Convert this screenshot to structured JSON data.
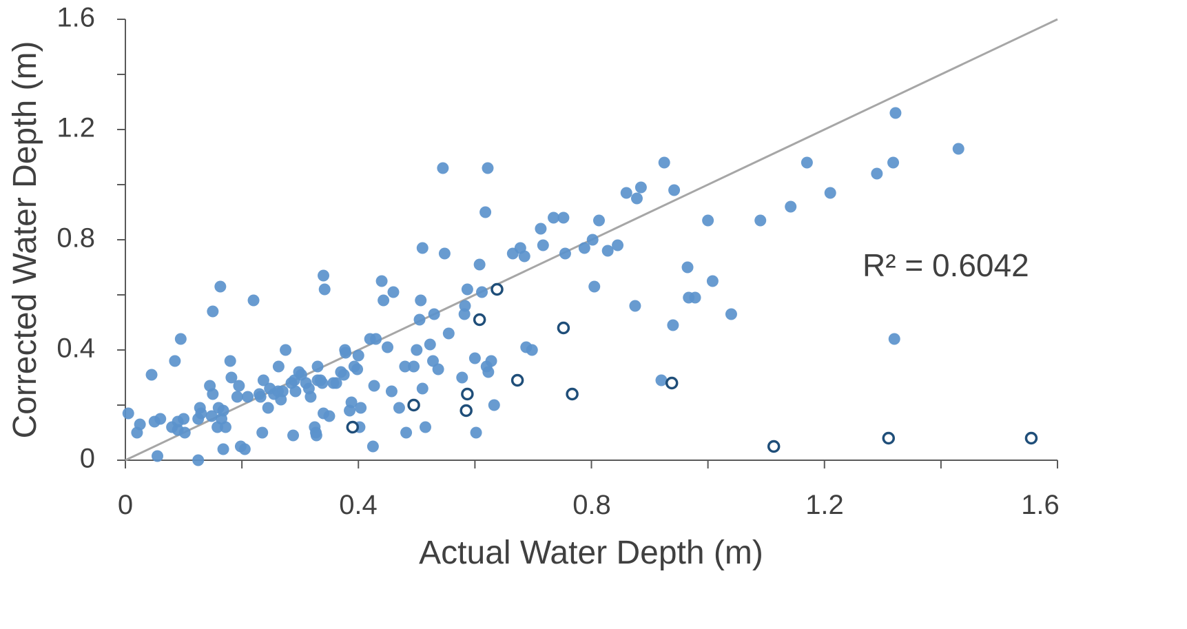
{
  "chart_data": {
    "type": "scatter",
    "xlabel": "Actual Water Depth (m)",
    "ylabel": "Corrected Water Depth (m)",
    "xlim": [
      0,
      1.6
    ],
    "ylim": [
      0,
      1.6
    ],
    "x_ticks": [
      "0",
      "0.4",
      "0.8",
      "1.2",
      "1.6"
    ],
    "y_ticks": [
      "0",
      "0.4",
      "0.8",
      "1.2",
      "1.6"
    ],
    "grid": false,
    "annotation": "R² = 0.6042",
    "reference_line": {
      "from": [
        0,
        0
      ],
      "to": [
        1.6,
        1.6
      ],
      "color": "#a6a6a6"
    },
    "colors": {
      "filled": "#5b93cc",
      "hollow_stroke": "#1f4e79",
      "axis": "#595959",
      "text": "#404040"
    },
    "series": [
      {
        "marker": "filled",
        "points": [
          [
            0.005,
            0.17
          ],
          [
            0.02,
            0.1
          ],
          [
            0.025,
            0.13
          ],
          [
            0.045,
            0.31
          ],
          [
            0.05,
            0.14
          ],
          [
            0.055,
            0.015
          ],
          [
            0.06,
            0.15
          ],
          [
            0.08,
            0.12
          ],
          [
            0.085,
            0.36
          ],
          [
            0.09,
            0.11
          ],
          [
            0.09,
            0.14
          ],
          [
            0.095,
            0.44
          ],
          [
            0.1,
            0.15
          ],
          [
            0.102,
            0.1
          ],
          [
            0.125,
            0.0
          ],
          [
            0.125,
            0.15
          ],
          [
            0.128,
            0.19
          ],
          [
            0.13,
            0.17
          ],
          [
            0.145,
            0.27
          ],
          [
            0.148,
            0.16
          ],
          [
            0.15,
            0.54
          ],
          [
            0.15,
            0.24
          ],
          [
            0.158,
            0.12
          ],
          [
            0.16,
            0.19
          ],
          [
            0.163,
            0.63
          ],
          [
            0.165,
            0.15
          ],
          [
            0.168,
            0.04
          ],
          [
            0.168,
            0.18
          ],
          [
            0.172,
            0.12
          ],
          [
            0.18,
            0.36
          ],
          [
            0.182,
            0.3
          ],
          [
            0.192,
            0.23
          ],
          [
            0.195,
            0.27
          ],
          [
            0.198,
            0.05
          ],
          [
            0.205,
            0.04
          ],
          [
            0.21,
            0.23
          ],
          [
            0.22,
            0.58
          ],
          [
            0.23,
            0.24
          ],
          [
            0.232,
            0.23
          ],
          [
            0.235,
            0.1
          ],
          [
            0.237,
            0.29
          ],
          [
            0.245,
            0.19
          ],
          [
            0.248,
            0.26
          ],
          [
            0.255,
            0.24
          ],
          [
            0.262,
            0.25
          ],
          [
            0.263,
            0.34
          ],
          [
            0.267,
            0.22
          ],
          [
            0.27,
            0.25
          ],
          [
            0.275,
            0.4
          ],
          [
            0.285,
            0.28
          ],
          [
            0.288,
            0.09
          ],
          [
            0.29,
            0.29
          ],
          [
            0.292,
            0.25
          ],
          [
            0.298,
            0.32
          ],
          [
            0.302,
            0.31
          ],
          [
            0.31,
            0.28
          ],
          [
            0.315,
            0.26
          ],
          [
            0.318,
            0.23
          ],
          [
            0.325,
            0.12
          ],
          [
            0.327,
            0.1
          ],
          [
            0.328,
            0.09
          ],
          [
            0.33,
            0.34
          ],
          [
            0.33,
            0.29
          ],
          [
            0.335,
            0.29
          ],
          [
            0.338,
            0.28
          ],
          [
            0.34,
            0.17
          ],
          [
            0.34,
            0.67
          ],
          [
            0.342,
            0.62
          ],
          [
            0.35,
            0.16
          ],
          [
            0.357,
            0.28
          ],
          [
            0.362,
            0.28
          ],
          [
            0.37,
            0.32
          ],
          [
            0.375,
            0.31
          ],
          [
            0.377,
            0.4
          ],
          [
            0.378,
            0.39
          ],
          [
            0.385,
            0.18
          ],
          [
            0.388,
            0.21
          ],
          [
            0.393,
            0.34
          ],
          [
            0.398,
            0.33
          ],
          [
            0.4,
            0.38
          ],
          [
            0.402,
            0.12
          ],
          [
            0.404,
            0.19
          ],
          [
            0.42,
            0.44
          ],
          [
            0.425,
            0.05
          ],
          [
            0.427,
            0.27
          ],
          [
            0.43,
            0.44
          ],
          [
            0.44,
            0.65
          ],
          [
            0.443,
            0.58
          ],
          [
            0.45,
            0.41
          ],
          [
            0.457,
            0.25
          ],
          [
            0.46,
            0.61
          ],
          [
            0.47,
            0.19
          ],
          [
            0.48,
            0.34
          ],
          [
            0.482,
            0.1
          ],
          [
            0.495,
            0.34
          ],
          [
            0.5,
            0.4
          ],
          [
            0.505,
            0.51
          ],
          [
            0.507,
            0.58
          ],
          [
            0.51,
            0.77
          ],
          [
            0.51,
            0.26
          ],
          [
            0.515,
            0.12
          ],
          [
            0.523,
            0.42
          ],
          [
            0.528,
            0.36
          ],
          [
            0.53,
            0.53
          ],
          [
            0.537,
            0.33
          ],
          [
            0.545,
            1.06
          ],
          [
            0.548,
            0.75
          ],
          [
            0.555,
            0.46
          ],
          [
            0.578,
            0.3
          ],
          [
            0.582,
            0.53
          ],
          [
            0.583,
            0.56
          ],
          [
            0.587,
            0.62
          ],
          [
            0.6,
            0.37
          ],
          [
            0.602,
            0.1
          ],
          [
            0.608,
            0.71
          ],
          [
            0.612,
            0.61
          ],
          [
            0.618,
            0.9
          ],
          [
            0.62,
            0.34
          ],
          [
            0.622,
            1.06
          ],
          [
            0.623,
            0.32
          ],
          [
            0.628,
            0.36
          ],
          [
            0.633,
            0.2
          ],
          [
            0.665,
            0.75
          ],
          [
            0.678,
            0.77
          ],
          [
            0.685,
            0.74
          ],
          [
            0.688,
            0.41
          ],
          [
            0.698,
            0.4
          ],
          [
            0.713,
            0.84
          ],
          [
            0.717,
            0.78
          ],
          [
            0.735,
            0.88
          ],
          [
            0.752,
            0.88
          ],
          [
            0.755,
            0.75
          ],
          [
            0.788,
            0.77
          ],
          [
            0.802,
            0.8
          ],
          [
            0.805,
            0.63
          ],
          [
            0.813,
            0.87
          ],
          [
            0.828,
            0.76
          ],
          [
            0.845,
            0.78
          ],
          [
            0.86,
            0.97
          ],
          [
            0.875,
            0.56
          ],
          [
            0.878,
            0.95
          ],
          [
            0.885,
            0.99
          ],
          [
            0.92,
            0.29
          ],
          [
            0.925,
            1.08
          ],
          [
            0.94,
            0.49
          ],
          [
            0.942,
            0.98
          ],
          [
            0.965,
            0.7
          ],
          [
            0.967,
            0.59
          ],
          [
            0.978,
            0.59
          ],
          [
            1.0,
            0.87
          ],
          [
            1.008,
            0.65
          ],
          [
            1.04,
            0.53
          ],
          [
            1.09,
            0.87
          ],
          [
            1.142,
            0.92
          ],
          [
            1.17,
            1.08
          ],
          [
            1.21,
            0.97
          ],
          [
            1.29,
            1.04
          ],
          [
            1.318,
            1.08
          ],
          [
            1.32,
            0.44
          ],
          [
            1.322,
            1.26
          ],
          [
            1.43,
            1.13
          ]
        ]
      },
      {
        "marker": "hollow",
        "points": [
          [
            0.39,
            0.12
          ],
          [
            0.495,
            0.2
          ],
          [
            0.585,
            0.18
          ],
          [
            0.587,
            0.24
          ],
          [
            0.608,
            0.51
          ],
          [
            0.638,
            0.62
          ],
          [
            0.673,
            0.29
          ],
          [
            0.752,
            0.48
          ],
          [
            0.767,
            0.24
          ],
          [
            0.938,
            0.28
          ],
          [
            1.113,
            0.05
          ],
          [
            1.31,
            0.08
          ],
          [
            1.555,
            0.08
          ]
        ]
      }
    ]
  }
}
